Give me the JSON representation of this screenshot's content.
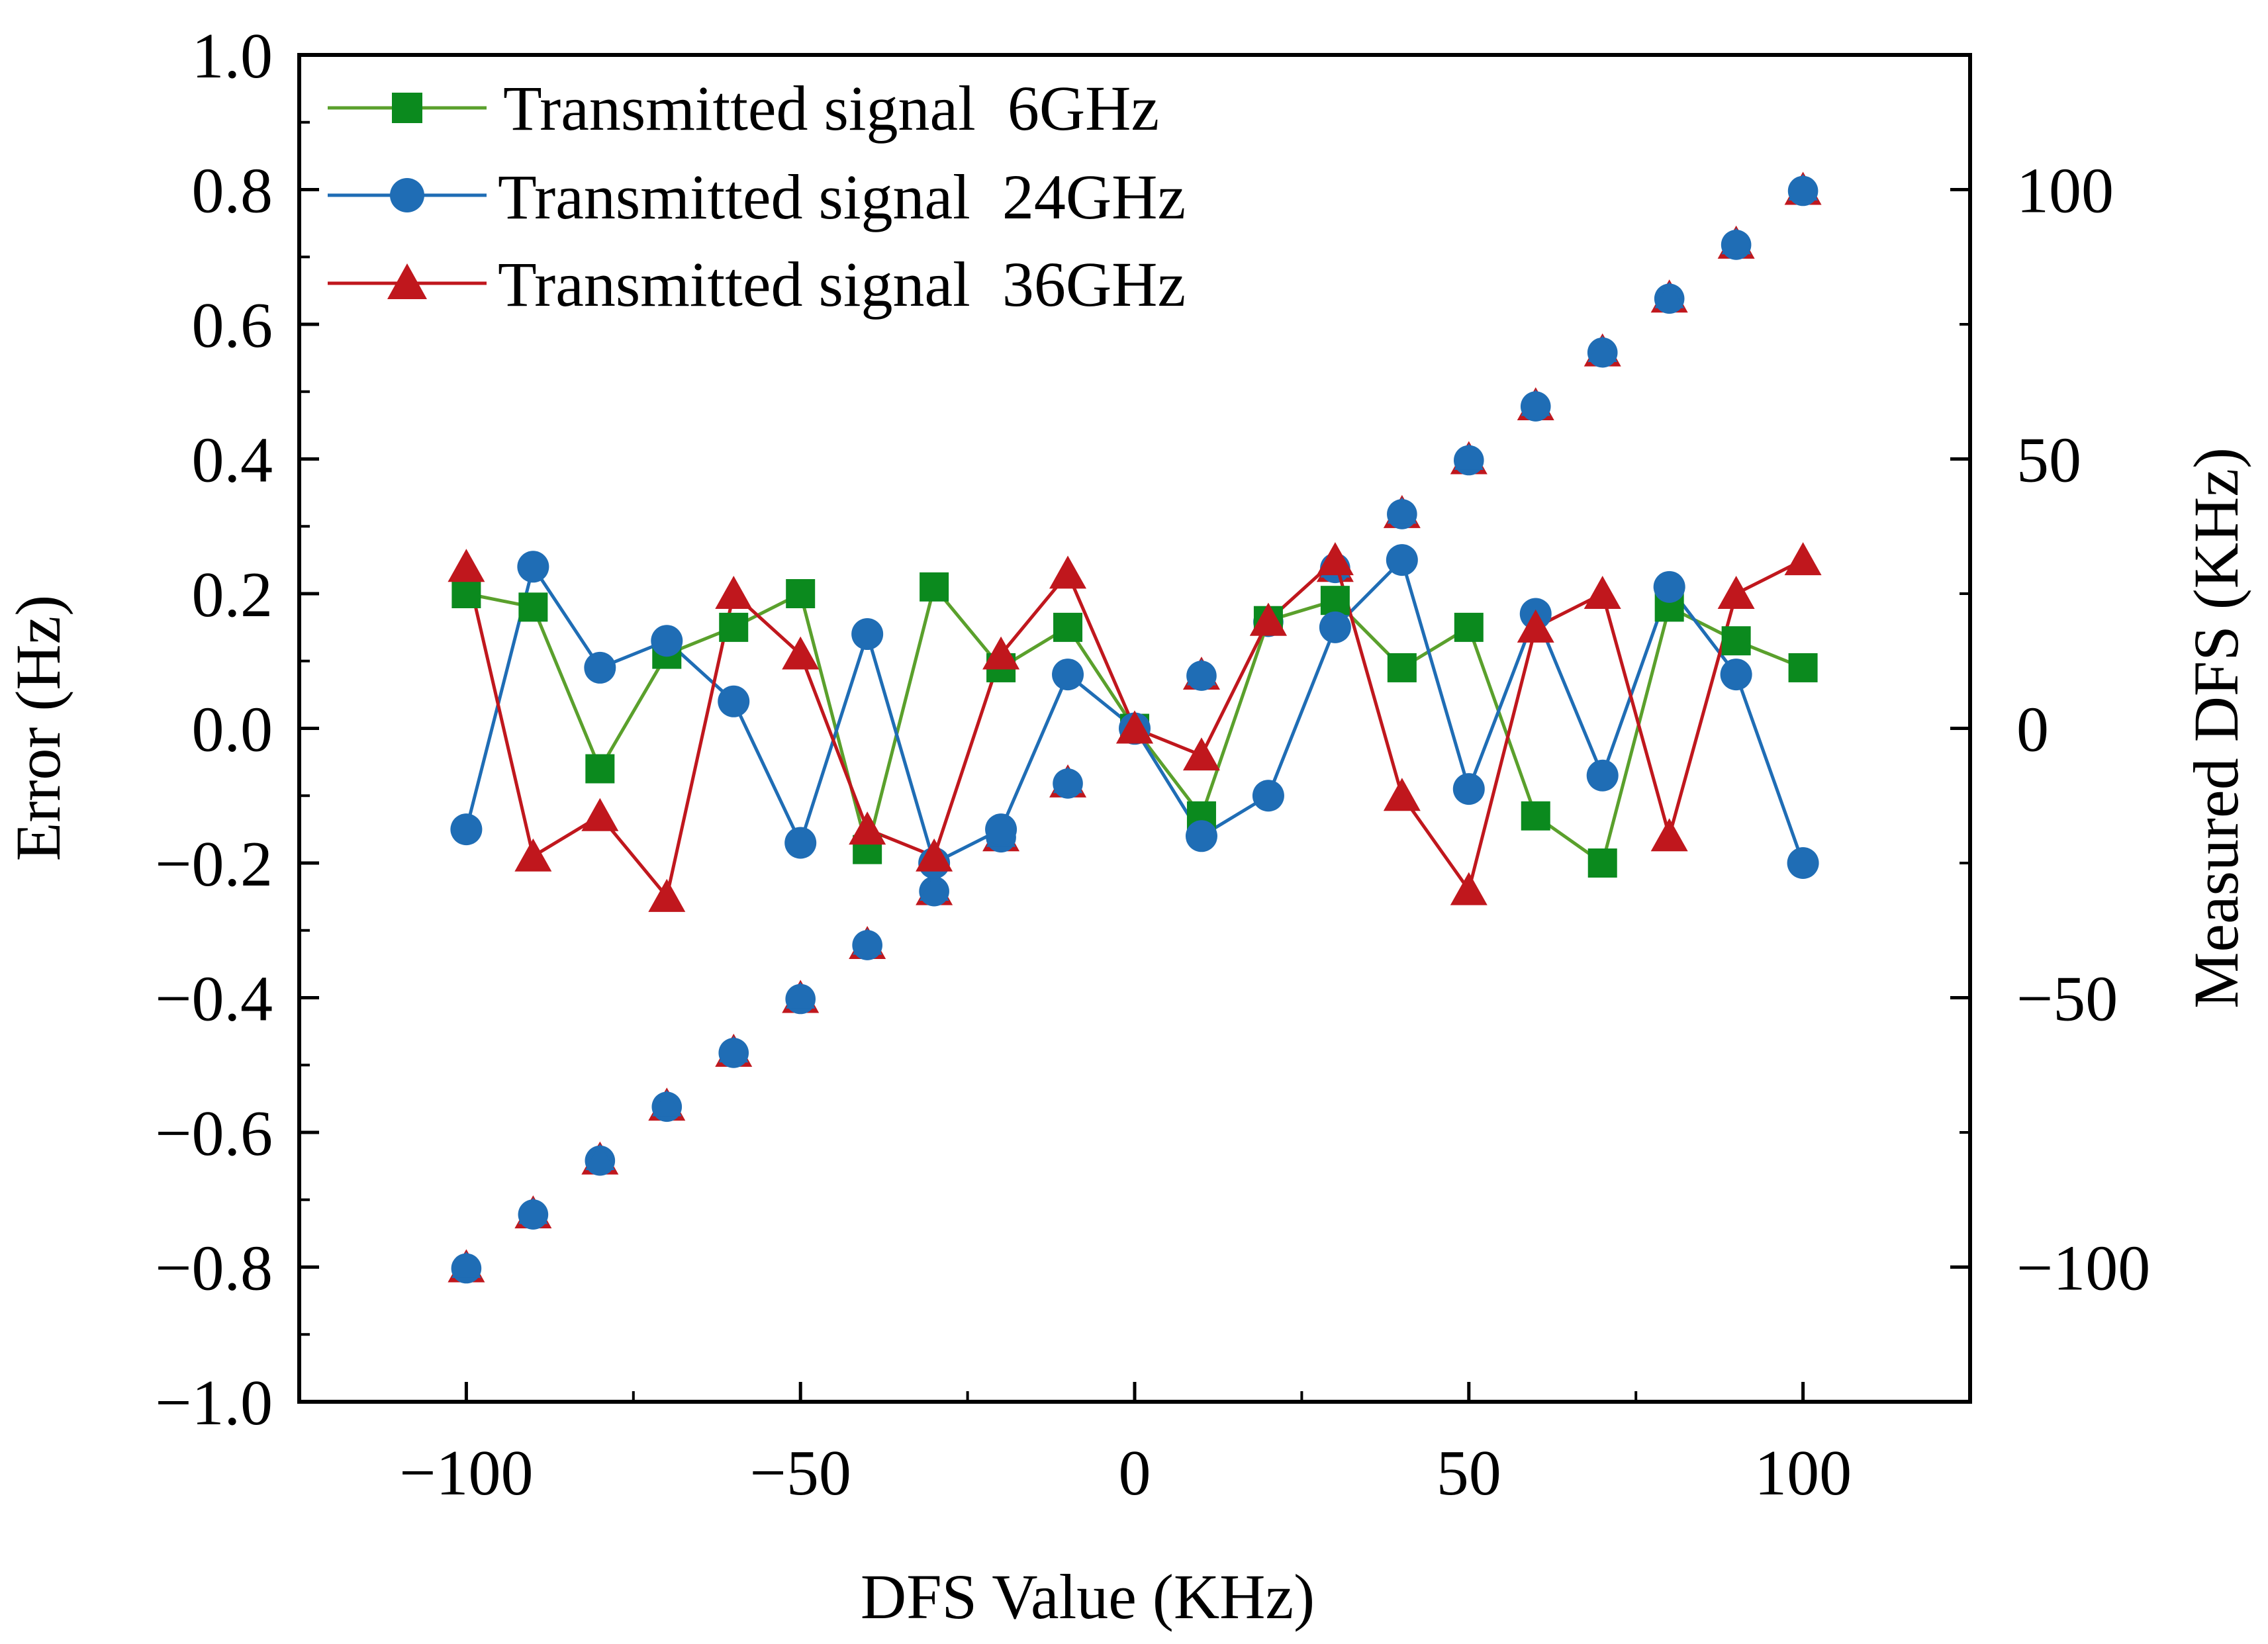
{
  "chart_data": {
    "type": "line",
    "title": "",
    "xlabel": "DFS Value (KHz)",
    "ylabel": "Error (Hz)",
    "y2label": "Measured DFS (KHz)",
    "xlim": [
      -125,
      125
    ],
    "ylim": [
      -1.0,
      1.0
    ],
    "y2lim": [
      -125,
      125
    ],
    "x_ticks": [
      -100,
      -50,
      0,
      50,
      100
    ],
    "x_tick_labels": [
      "−100",
      "−50",
      "0",
      "50",
      "100"
    ],
    "y_ticks": [
      -1.0,
      -0.8,
      -0.6,
      -0.4,
      -0.2,
      0.0,
      0.2,
      0.4,
      0.6,
      0.8,
      1.0
    ],
    "y_tick_labels": [
      "−1.0",
      "−0.8",
      "−0.6",
      "−0.4",
      "−0.2",
      "0.0",
      "0.2",
      "0.4",
      "0.6",
      "0.8",
      "1.0"
    ],
    "y2_ticks": [
      -100,
      -50,
      0,
      50,
      100
    ],
    "y2_tick_labels": [
      "−100",
      "−50",
      "0",
      "50",
      "100"
    ],
    "legend_position": "top-left",
    "x": [
      -100,
      -90,
      -80,
      -70,
      -60,
      -50,
      -40,
      -30,
      -20,
      -10,
      0,
      10,
      20,
      30,
      40,
      50,
      60,
      70,
      80,
      90,
      100
    ],
    "series": [
      {
        "name": "Transmitted signal  6GHz",
        "color": "#5aa02c",
        "marker_color": "#0b8a1e",
        "marker": "square",
        "axis": "left",
        "values": [
          0.2,
          0.18,
          -0.06,
          0.11,
          0.15,
          0.2,
          -0.18,
          0.21,
          0.09,
          0.15,
          0.0,
          -0.13,
          0.16,
          0.19,
          0.09,
          0.15,
          -0.13,
          -0.2,
          0.18,
          0.13,
          0.09
        ]
      },
      {
        "name": "Transmitted signal  24GHz",
        "color": "#1f6db5",
        "marker_color": "#1f6db5",
        "marker": "circle",
        "axis": "left",
        "values": [
          -0.15,
          0.24,
          0.09,
          0.13,
          0.04,
          -0.17,
          0.14,
          -0.2,
          -0.15,
          0.08,
          0.0,
          -0.16,
          -0.1,
          0.15,
          0.25,
          -0.09,
          0.17,
          -0.07,
          0.21,
          0.08,
          -0.2
        ]
      },
      {
        "name": "Transmitted signal  36GHz",
        "color": "#c0171d",
        "marker_color": "#c0171d",
        "marker": "triangle",
        "axis": "left",
        "values": [
          0.24,
          -0.19,
          -0.13,
          -0.25,
          0.2,
          0.11,
          -0.15,
          -0.19,
          0.11,
          0.23,
          0.0,
          -0.04,
          0.16,
          0.25,
          -0.1,
          -0.24,
          0.15,
          0.2,
          -0.16,
          0.2,
          0.25
        ]
      }
    ],
    "measured_dfs": {
      "axis": "right",
      "x": [
        -100,
        -90,
        -80,
        -70,
        -60,
        -50,
        -40,
        -30,
        -20,
        -10,
        0,
        10,
        20,
        30,
        40,
        50,
        60,
        70,
        80,
        90,
        100
      ],
      "values": [
        -100,
        -90,
        -80,
        -70,
        -60,
        -50,
        -40,
        -30,
        -20,
        -10,
        0,
        10,
        20,
        30,
        40,
        50,
        60,
        70,
        80,
        90,
        100
      ]
    }
  }
}
